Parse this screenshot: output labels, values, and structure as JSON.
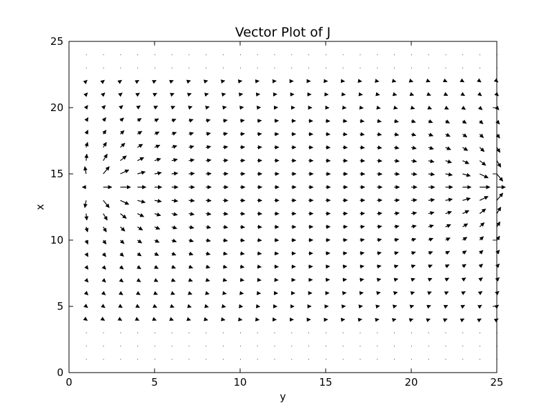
{
  "chart_data": {
    "type": "quiver",
    "title": "Vector Plot of J",
    "xlabel": "y",
    "ylabel": "x",
    "xlim": [
      0,
      25
    ],
    "ylim": [
      0,
      25
    ],
    "xticks": [
      "0",
      "5",
      "10",
      "15",
      "20",
      "25"
    ],
    "yticks": [
      "0",
      "5",
      "10",
      "15",
      "20",
      "25"
    ],
    "grid": false,
    "legend": "none",
    "arrow_color": "#000000",
    "field": {
      "description_of_sampling": "arrows drawn on integer grid points",
      "x_range": [
        1,
        25
      ],
      "y_range": [
        1,
        24
      ],
      "source_near": {
        "x": 2,
        "y": 14
      },
      "sink_near": {
        "x": 25,
        "y": 14
      },
      "dominant_direction": "+x"
    }
  }
}
